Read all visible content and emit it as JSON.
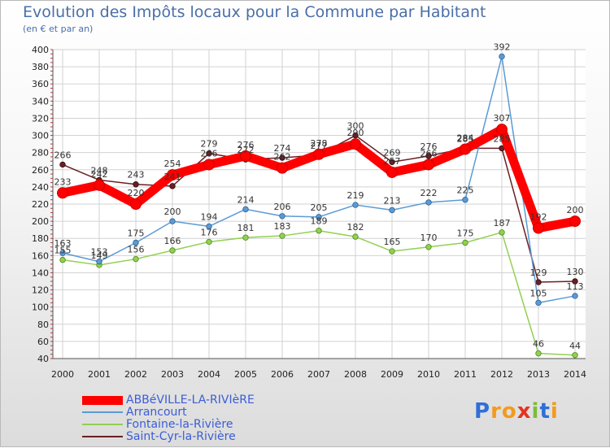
{
  "header": {
    "title": "Evolution des Impôts locaux pour la Commune par Habitant",
    "subtitle": "(en € et par an)"
  },
  "chart_data": {
    "type": "line",
    "title": "Evolution des Impôts locaux pour la Commune par Habitant",
    "subtitle": "(en € et par an)",
    "xlabel": "",
    "ylabel": "",
    "ylim": [
      40,
      400
    ],
    "yticks": [
      40,
      60,
      80,
      100,
      120,
      140,
      160,
      180,
      200,
      220,
      240,
      260,
      280,
      300,
      320,
      340,
      360,
      380,
      400
    ],
    "grid": true,
    "legend_position": "bottom-left",
    "categories": [
      "2000",
      "2001",
      "2002",
      "2003",
      "2004",
      "2005",
      "2006",
      "2007",
      "2008",
      "2009",
      "2010",
      "2011",
      "2012",
      "2013",
      "2014"
    ],
    "series": [
      {
        "name": "ABBéVILLE-LA-RIVIèRE",
        "color": "#ff0000",
        "values": [
          233,
          242,
          220,
          254,
          266,
          276,
          262,
          278,
          290,
          257,
          266,
          284,
          307,
          192,
          200
        ],
        "labels": [
          "233",
          "242",
          "220",
          "254",
          "266",
          "276",
          "262",
          "278",
          "290",
          "257",
          "266",
          "284",
          "307",
          "192",
          "200"
        ]
      },
      {
        "name": "Arrancourt",
        "color": "#5b9bd5",
        "values": [
          163,
          153,
          175,
          200,
          194,
          214,
          206,
          205,
          219,
          213,
          222,
          225,
          392,
          105,
          113
        ],
        "labels": [
          "163",
          "153",
          "175",
          "200",
          "194",
          "214",
          "206",
          "205",
          "219",
          "213",
          "222",
          "225",
          "392",
          "105",
          "113"
        ]
      },
      {
        "name": "Fontaine-la-Rivière",
        "color": "#92d050",
        "values": [
          155,
          149,
          156,
          166,
          176,
          181,
          183,
          189,
          182,
          165,
          170,
          175,
          187,
          46,
          44
        ],
        "labels": [
          "155",
          "149",
          "156",
          "166",
          "176",
          "181",
          "183",
          "189",
          "182",
          "165",
          "170",
          "175",
          "187",
          "46",
          "44"
        ]
      },
      {
        "name": "Saint-Cyr-la-Rivière",
        "color": "#6b1f24",
        "values": [
          266,
          248,
          243,
          241,
          279,
          272,
          274,
          277,
          300,
          269,
          276,
          285,
          285,
          129,
          130
        ],
        "labels": [
          "266",
          "248",
          "243",
          "241",
          "279",
          "272",
          "274",
          "277",
          "300",
          "269",
          "276",
          "285",
          "285",
          "129",
          "130"
        ]
      }
    ]
  },
  "legend": {
    "items": [
      {
        "label": "ABBéVILLE-LA-RIVIèRE",
        "color": "#ff0000",
        "width": 11
      },
      {
        "label": "Arrancourt",
        "color": "#5b9bd5",
        "width": 2
      },
      {
        "label": "Fontaine-la-Rivière",
        "color": "#92d050",
        "width": 2
      },
      {
        "label": "Saint-Cyr-la-Rivière",
        "color": "#6b1f24",
        "width": 2
      }
    ]
  },
  "logo": {
    "letters": [
      "P",
      "r",
      "o",
      "x",
      "i",
      "t",
      "i"
    ],
    "colors": [
      "#2f6fd8",
      "#f39a1e",
      "#f39a1e",
      "#e53320",
      "#7cbd3a",
      "#2f6fd8",
      "#f39a1e"
    ]
  }
}
